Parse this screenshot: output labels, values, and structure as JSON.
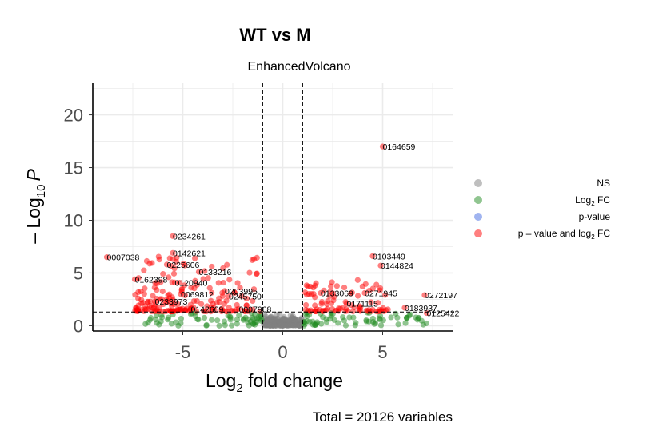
{
  "chart_data": {
    "type": "scatter",
    "title": "WT vs M",
    "subtitle": "EnhancedVolcano",
    "xlabel_main": "Log",
    "xlabel_sub": "2",
    "xlabel_rest": " fold change",
    "ylabel_pre": "– Log",
    "ylabel_sub": "10",
    "ylabel_italic": "P",
    "caption": "Total = 20126 variables",
    "xlim": [
      -9.5,
      8.5
    ],
    "ylim": [
      -0.5,
      23
    ],
    "x_ticks": [
      -5,
      0,
      5
    ],
    "y_ticks": [
      0,
      5,
      10,
      15,
      20
    ],
    "x_tick_labels": [
      "-5",
      "0",
      "5"
    ],
    "y_tick_labels": [
      "0",
      "5",
      "10",
      "15",
      "20"
    ],
    "fc_cutoff": 1,
    "p_cutoff_log10": 1.3,
    "grid": true,
    "legend_position": "right",
    "legend": [
      {
        "label": "NS",
        "color": "#808080"
      },
      {
        "label_main": "Log",
        "label_sub": "2",
        "label_rest": " FC",
        "color": "#228b22"
      },
      {
        "label": "p-value",
        "color": "#4169e1"
      },
      {
        "label_main": "p – value and log",
        "label_sub": "2",
        "label_rest": " FC",
        "color": "#ff0000"
      }
    ],
    "labeled_points": [
      {
        "id": "0164659",
        "x": 5.0,
        "y": 17.0
      },
      {
        "id": "0234261",
        "x": -5.5,
        "y": 8.5
      },
      {
        "id": "0142621",
        "x": -5.5,
        "y": 6.9
      },
      {
        "id": "0007038",
        "x": -8.8,
        "y": 6.5
      },
      {
        "id": "0225606",
        "x": -5.8,
        "y": 5.8
      },
      {
        "id": "0133216",
        "x": -4.2,
        "y": 5.1
      },
      {
        "id": "0162398",
        "x": -7.4,
        "y": 4.4
      },
      {
        "id": "0120940",
        "x": -5.4,
        "y": 4.1
      },
      {
        "id": "0203995",
        "x": -2.9,
        "y": 3.3
      },
      {
        "id": "0069812",
        "x": -5.1,
        "y": 3.0
      },
      {
        "id": "0245750",
        "x": -2.7,
        "y": 2.8
      },
      {
        "id": "0233973",
        "x": -6.4,
        "y": 2.3
      },
      {
        "id": "0142609",
        "x": -4.6,
        "y": 1.6
      },
      {
        "id": "0007968",
        "x": -2.2,
        "y": 1.6
      },
      {
        "id": "0103449",
        "x": 4.5,
        "y": 6.6
      },
      {
        "id": "0144824",
        "x": 4.9,
        "y": 5.7
      },
      {
        "id": "0133069",
        "x": 1.9,
        "y": 3.1
      },
      {
        "id": "0271945",
        "x": 4.1,
        "y": 3.1
      },
      {
        "id": "0272197",
        "x": 7.1,
        "y": 2.9
      },
      {
        "id": "0171115",
        "x": 3.2,
        "y": 2.1
      },
      {
        "id": "0183937",
        "x": 6.1,
        "y": 1.7
      },
      {
        "id": "0125422",
        "x": 7.2,
        "y": 1.2
      }
    ]
  }
}
